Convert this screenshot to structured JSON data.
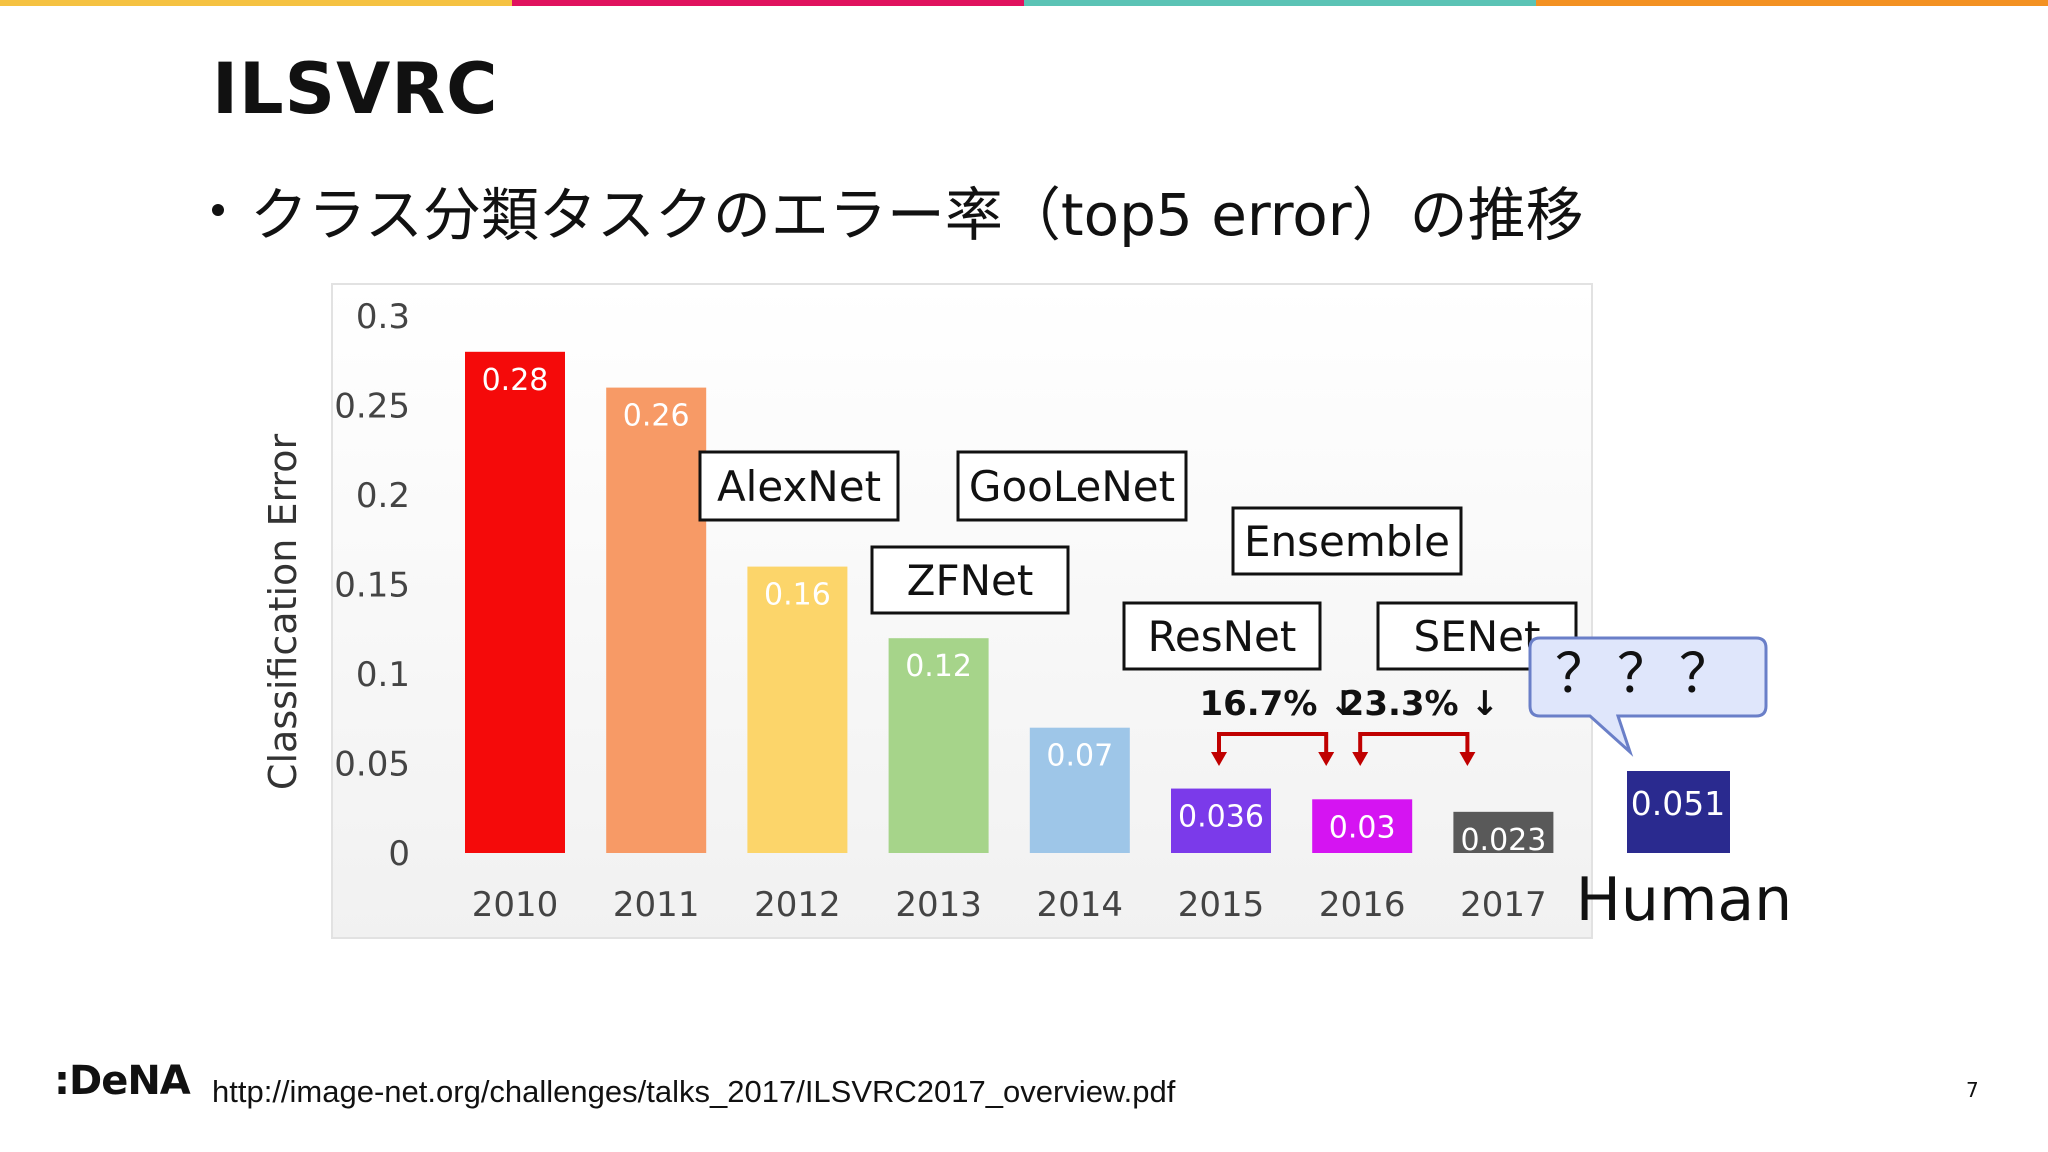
{
  "slide": {
    "title": "ILSVRC",
    "bullet": "クラス分類タスクのエラー率（top5 error）の推移",
    "footer_url": "http://image-net.org/challenges/talks_2017/ILSVRC2017_overview.pdf",
    "page_number": "7",
    "logo_text": ":DeNA",
    "topbar_colors": [
      "#F5C242",
      "#E0125E",
      "#5BC3B5",
      "#F39122"
    ]
  },
  "chart_data": {
    "type": "bar",
    "ylabel": "Classification Error",
    "ylim": [
      0,
      0.3
    ],
    "yticks": [
      "0",
      "0.05",
      "0.1",
      "0.15",
      "0.2",
      "0.25",
      "0.3"
    ],
    "categories": [
      "2010",
      "2011",
      "2012",
      "2013",
      "2014",
      "2015",
      "2016",
      "2017"
    ],
    "values": [
      0.28,
      0.26,
      0.16,
      0.12,
      0.07,
      0.036,
      0.03,
      0.023
    ],
    "value_labels": [
      "0.28",
      "0.26",
      "0.16",
      "0.12",
      "0.07",
      "0.036",
      "0.03",
      "0.023"
    ],
    "bar_colors": [
      "#F50A0A",
      "#F79A66",
      "#FCD56A",
      "#A6D48A",
      "#9EC6E8",
      "#7B3AEA",
      "#D514F2",
      "#595959"
    ],
    "annotations": [
      {
        "label": "AlexNet",
        "year": "2012"
      },
      {
        "label": "ZFNet",
        "year": "2013"
      },
      {
        "label": "GooLeNet",
        "year": "2014"
      },
      {
        "label": "ResNet",
        "year": "2015"
      },
      {
        "label": "Ensemble",
        "year": "2016"
      },
      {
        "label": "SENet",
        "year": "2017"
      }
    ],
    "reductions": [
      {
        "label": "16.7% ↓",
        "from": "2015",
        "to": "2016"
      },
      {
        "label": "23.3% ↓",
        "from": "2016",
        "to": "2017"
      }
    ],
    "human": {
      "value": 0.051,
      "value_label": "0.051",
      "label": "Human",
      "color": "#2A2A8F",
      "callout": "？？？"
    }
  }
}
